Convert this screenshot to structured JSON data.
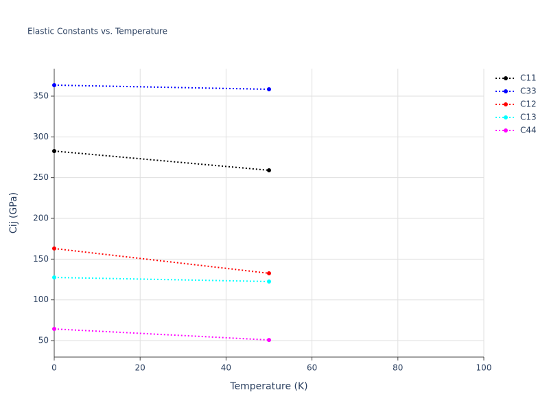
{
  "chart_data": {
    "type": "line",
    "title": "Elastic Constants vs. Temperature",
    "xlabel": "Temperature (K)",
    "ylabel": "Cij (GPa)",
    "x": [
      0,
      50
    ],
    "series": [
      {
        "name": "C11",
        "color": "#000000",
        "values": [
          282.6,
          259
        ]
      },
      {
        "name": "C33",
        "color": "#0000ff",
        "values": [
          363.5,
          358.4
        ]
      },
      {
        "name": "C12",
        "color": "#ff0000",
        "values": [
          163,
          132.6
        ]
      },
      {
        "name": "C13",
        "color": "#00ffff",
        "values": [
          127.5,
          122.5
        ]
      },
      {
        "name": "C44",
        "color": "#ff00ff",
        "values": [
          64.3,
          50.8
        ]
      }
    ],
    "xlim": [
      0,
      100
    ],
    "xticks": [
      0,
      20,
      40,
      60,
      80,
      100
    ],
    "ylim": [
      29.8,
      383.7
    ],
    "yticks": [
      50,
      100,
      150,
      200,
      250,
      300,
      350
    ],
    "grid": true,
    "legend": "top-right"
  }
}
